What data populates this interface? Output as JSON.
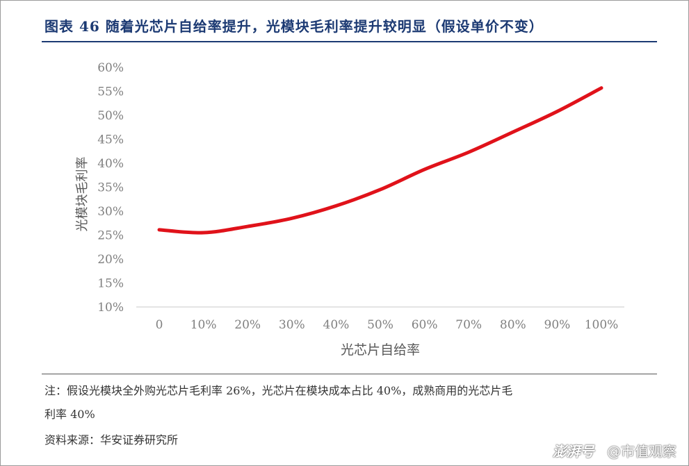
{
  "title": "图表 46 随着光芯片自给率提升，光模块毛利率提升较明显（假设单价不变）",
  "note_line1": "注：假设光模块全外购光芯片毛利率 26%，光芯片在模块成本占比 40%，成熟商用的光芯片毛",
  "note_line2": "利率 40%",
  "source": "资料来源：华安证券研究所",
  "watermark": {
    "logo": "澎湃号",
    "text": "@市值观察"
  },
  "colors": {
    "line": "#e0121a",
    "title": "#1c3a73",
    "axis": "#c8c8c8",
    "text": "#7f7f7f"
  },
  "chart_data": {
    "type": "line",
    "xlabel": "光芯片自给率",
    "ylabel": "光模块毛利率",
    "categories": [
      "0",
      "10%",
      "20%",
      "30%",
      "40%",
      "50%",
      "60%",
      "70%",
      "80%",
      "90%",
      "100%"
    ],
    "x": [
      0,
      10,
      20,
      30,
      40,
      50,
      60,
      70,
      80,
      90,
      100
    ],
    "y_ticks": [
      "10%",
      "15%",
      "20%",
      "25%",
      "30%",
      "35%",
      "40%",
      "45%",
      "50%",
      "55%",
      "60%"
    ],
    "ylim": [
      10,
      60
    ],
    "series": [
      {
        "values": [
          26.1,
          25.5,
          26.8,
          28.5,
          31.1,
          34.5,
          38.7,
          42.3,
          46.5,
          50.8,
          55.7
        ]
      }
    ],
    "grid": false,
    "legend": "none"
  }
}
